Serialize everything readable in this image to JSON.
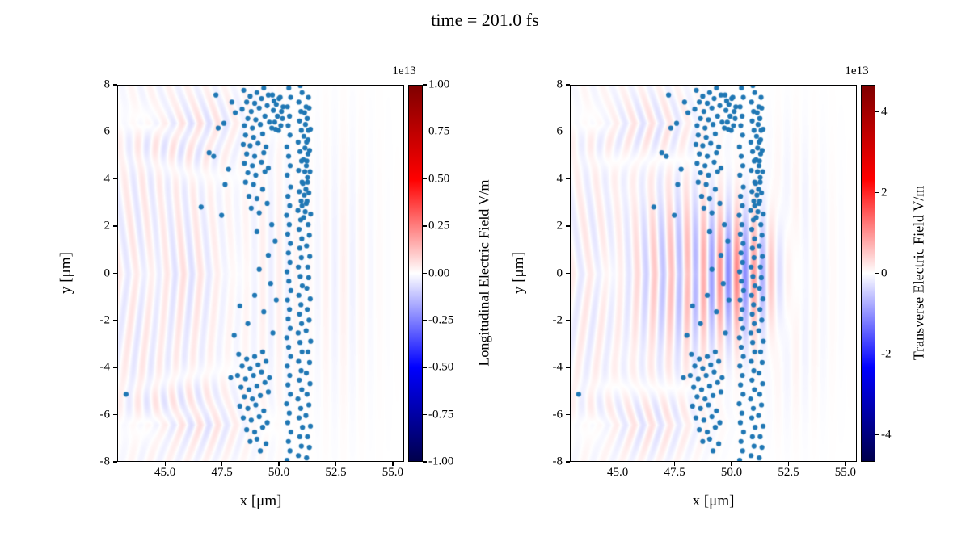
{
  "title": "time = 201.0 fs",
  "chart_data": [
    {
      "type": "scatter+heatmap",
      "xlabel": "x [μm]",
      "ylabel": "y [μm]",
      "xlim": [
        42.9,
        55.5
      ],
      "ylim": [
        -8,
        8
      ],
      "xticks": [
        45.0,
        47.5,
        50.0,
        52.5,
        55.0
      ],
      "xtick_labels": [
        "45.0",
        "47.5",
        "50.0",
        "52.5",
        "55.0"
      ],
      "yticks": [
        8,
        6,
        4,
        2,
        0,
        -2,
        -4,
        -6,
        -8
      ],
      "ytick_labels": [
        "8",
        "6",
        "4",
        "2",
        "0",
        "-2",
        "-4",
        "-6",
        "-8"
      ],
      "marker_color": "#1f77b4",
      "colorbar": {
        "label": "Longitudinal Electric Field V/m",
        "scale": "1e13",
        "vmin": -1.0,
        "vmax": 1.0,
        "tick_values": [
          1.0,
          0.75,
          0.5,
          0.25,
          0.0,
          -0.25,
          -0.5,
          -0.75,
          -1.0
        ],
        "tick_labels": [
          "1.00",
          "0.75",
          "0.50",
          "0.25",
          "0.00",
          "-0.25",
          "-0.50",
          "-0.75",
          "-1.00"
        ],
        "colormap": "seismic"
      },
      "field": {
        "packets": [
          {
            "cx": 45.6,
            "cy": 0,
            "sx": 2.0,
            "sy": 5.0,
            "wl": 0.75,
            "amp": 0.14,
            "tilt": 0.1
          },
          {
            "cx": 43.6,
            "cy": 0,
            "sx": 1.4,
            "sy": 7.0,
            "wl": 0.8,
            "amp": 0.1,
            "tilt": 0.15
          },
          {
            "cx": 46.3,
            "cy": 6.4,
            "sx": 2.4,
            "sy": 1.8,
            "wl": 0.8,
            "amp": 0.13,
            "tilt": 0.35
          },
          {
            "cx": 46.3,
            "cy": -6.4,
            "sx": 2.4,
            "sy": 1.8,
            "wl": 0.8,
            "amp": 0.13,
            "tilt": 0.35
          },
          {
            "cx": 49.8,
            "cy": 0,
            "sx": 1.6,
            "sy": 6.0,
            "wl": 0.75,
            "amp": 0.07,
            "tilt": 0.0
          },
          {
            "cx": 52.6,
            "cy": 0,
            "sx": 1.6,
            "sy": 6.0,
            "wl": 0.8,
            "amp": 0.06,
            "tilt": 0.0
          }
        ]
      }
    },
    {
      "type": "scatter+heatmap",
      "xlabel": "x [μm]",
      "ylabel": "y [μm]",
      "xlim": [
        42.9,
        55.5
      ],
      "ylim": [
        -8,
        8
      ],
      "xticks": [
        45.0,
        47.5,
        50.0,
        52.5,
        55.0
      ],
      "xtick_labels": [
        "45.0",
        "47.5",
        "50.0",
        "52.5",
        "55.0"
      ],
      "yticks": [
        8,
        6,
        4,
        2,
        0,
        -2,
        -4,
        -6,
        -8
      ],
      "ytick_labels": [
        "8",
        "6",
        "4",
        "2",
        "0",
        "-2",
        "-4",
        "-6",
        "-8"
      ],
      "marker_color": "#1f77b4",
      "colorbar": {
        "label": "Transverse Electric Field V/m",
        "scale": "1e13",
        "vmin": -4.67,
        "vmax": 4.67,
        "tick_values": [
          4,
          2,
          0,
          -2,
          -4
        ],
        "tick_labels": [
          "4",
          "2",
          "0",
          "-2",
          "-4"
        ],
        "colormap": "seismic"
      },
      "field": {
        "packets": [
          {
            "cx": 50.0,
            "cy": 0,
            "sx": 2.2,
            "sy": 2.6,
            "wl": 0.75,
            "amp": 0.5,
            "tilt": 0.0
          },
          {
            "cx": 47.2,
            "cy": 0,
            "sx": 2.2,
            "sy": 3.8,
            "wl": 0.78,
            "amp": 0.22,
            "tilt": 0.05
          },
          {
            "cx": 43.6,
            "cy": 0,
            "sx": 1.4,
            "sy": 7.0,
            "wl": 0.8,
            "amp": 0.1,
            "tilt": 0.15
          },
          {
            "cx": 46.3,
            "cy": 6.4,
            "sx": 2.4,
            "sy": 1.8,
            "wl": 0.8,
            "amp": 0.12,
            "tilt": 0.35
          },
          {
            "cx": 46.3,
            "cy": -6.4,
            "sx": 2.4,
            "sy": 1.8,
            "wl": 0.8,
            "amp": 0.12,
            "tilt": 0.35
          },
          {
            "cx": 52.6,
            "cy": 0,
            "sx": 1.6,
            "sy": 5.0,
            "wl": 0.8,
            "amp": 0.1,
            "tilt": 0.0
          }
        ]
      }
    }
  ],
  "scatter_points": [
    [
      50.32,
      -7.9
    ],
    [
      50.45,
      -7.5
    ],
    [
      50.38,
      -7.1
    ],
    [
      50.49,
      -6.7
    ],
    [
      50.35,
      -6.3
    ],
    [
      50.42,
      -5.9
    ],
    [
      50.3,
      -5.5
    ],
    [
      50.47,
      -5.1
    ],
    [
      50.36,
      -4.7
    ],
    [
      50.44,
      -4.3
    ],
    [
      50.33,
      -3.9
    ],
    [
      50.48,
      -3.5
    ],
    [
      50.39,
      -3.1
    ],
    [
      50.31,
      -2.7
    ],
    [
      50.46,
      -2.3
    ],
    [
      50.37,
      -1.9
    ],
    [
      50.43,
      -1.5
    ],
    [
      50.34,
      -1.1
    ],
    [
      50.49,
      -0.7
    ],
    [
      50.4,
      -0.3
    ],
    [
      50.32,
      0.1
    ],
    [
      50.45,
      0.5
    ],
    [
      50.38,
      0.9
    ],
    [
      50.47,
      1.3
    ],
    [
      50.35,
      1.7
    ],
    [
      50.42,
      2.1
    ],
    [
      50.3,
      2.5
    ],
    [
      50.44,
      2.9
    ],
    [
      50.36,
      3.3
    ],
    [
      50.48,
      3.7
    ],
    [
      50.33,
      4.2
    ],
    [
      50.46,
      4.6
    ],
    [
      50.39,
      5.0
    ],
    [
      50.31,
      5.4
    ],
    [
      50.45,
      5.9
    ],
    [
      50.37,
      6.3
    ],
    [
      50.43,
      6.7
    ],
    [
      50.34,
      7.1
    ],
    [
      50.48,
      7.5
    ],
    [
      50.4,
      7.9
    ],
    [
      50.82,
      -7.7
    ],
    [
      50.95,
      -7.3
    ],
    [
      50.88,
      -6.9
    ],
    [
      51.0,
      -6.5
    ],
    [
      50.85,
      -6.1
    ],
    [
      50.92,
      -5.7
    ],
    [
      50.8,
      -5.3
    ],
    [
      50.97,
      -4.9
    ],
    [
      50.86,
      -4.5
    ],
    [
      50.94,
      -4.1
    ],
    [
      50.83,
      -3.7
    ],
    [
      50.98,
      -3.3
    ],
    [
      50.89,
      -2.9
    ],
    [
      50.81,
      -2.5
    ],
    [
      50.96,
      -2.1
    ],
    [
      50.87,
      -1.7
    ],
    [
      50.93,
      -1.3
    ],
    [
      50.84,
      -0.9
    ],
    [
      50.99,
      -0.5
    ],
    [
      50.9,
      -0.1
    ],
    [
      50.82,
      0.3
    ],
    [
      50.95,
      0.7
    ],
    [
      50.88,
      1.1
    ],
    [
      50.97,
      1.5
    ],
    [
      50.85,
      1.9
    ],
    [
      50.92,
      2.3
    ],
    [
      50.8,
      2.7
    ],
    [
      50.94,
      3.1
    ],
    [
      50.86,
      3.5
    ],
    [
      50.98,
      3.9
    ],
    [
      50.83,
      4.4
    ],
    [
      50.96,
      4.8
    ],
    [
      50.89,
      5.2
    ],
    [
      50.81,
      5.6
    ],
    [
      50.95,
      6.1
    ],
    [
      50.87,
      6.5
    ],
    [
      50.93,
      6.9
    ],
    [
      50.84,
      7.3
    ],
    [
      50.98,
      7.7
    ],
    [
      50.9,
      8.0
    ],
    [
      51.18,
      -7.8
    ],
    [
      51.3,
      -7.35
    ],
    [
      51.22,
      -6.9
    ],
    [
      51.35,
      -6.45
    ],
    [
      51.15,
      -6.0
    ],
    [
      51.28,
      -5.55
    ],
    [
      51.2,
      -5.1
    ],
    [
      51.33,
      -4.65
    ],
    [
      51.17,
      -4.2
    ],
    [
      51.31,
      -3.75
    ],
    [
      51.24,
      -3.3
    ],
    [
      51.36,
      -2.85
    ],
    [
      51.16,
      -2.4
    ],
    [
      51.29,
      -1.95
    ],
    [
      51.21,
      -1.5
    ],
    [
      51.34,
      -1.05
    ],
    [
      51.19,
      -0.6
    ],
    [
      51.27,
      -0.15
    ],
    [
      51.23,
      0.3
    ],
    [
      51.32,
      0.75
    ],
    [
      51.18,
      1.2
    ],
    [
      51.3,
      1.65
    ],
    [
      51.25,
      2.1
    ],
    [
      51.36,
      2.55
    ],
    [
      51.17,
      3.0
    ],
    [
      51.28,
      3.45
    ],
    [
      51.22,
      3.9
    ],
    [
      51.33,
      4.35
    ],
    [
      51.19,
      4.8
    ],
    [
      51.31,
      5.25
    ],
    [
      51.24,
      5.7
    ],
    [
      51.35,
      6.15
    ],
    [
      51.2,
      6.6
    ],
    [
      51.29,
      7.05
    ],
    [
      51.26,
      7.5
    ],
    [
      51.05,
      2.4
    ],
    [
      51.12,
      2.65
    ],
    [
      50.98,
      2.9
    ],
    [
      51.2,
      3.1
    ],
    [
      51.08,
      3.35
    ],
    [
      51.15,
      3.6
    ],
    [
      51.02,
      3.85
    ],
    [
      51.22,
      4.1
    ],
    [
      51.1,
      4.35
    ],
    [
      51.17,
      4.6
    ],
    [
      51.04,
      4.85
    ],
    [
      51.24,
      5.1
    ],
    [
      51.11,
      5.35
    ],
    [
      51.18,
      5.6
    ],
    [
      51.06,
      5.85
    ],
    [
      51.26,
      6.1
    ],
    [
      51.13,
      6.35
    ],
    [
      51.21,
      6.6
    ],
    [
      51.09,
      6.85
    ],
    [
      51.16,
      7.1
    ],
    [
      49.65,
      6.2
    ],
    [
      49.78,
      6.45
    ],
    [
      49.9,
      6.7
    ],
    [
      49.72,
      6.95
    ],
    [
      49.85,
      7.2
    ],
    [
      49.97,
      7.45
    ],
    [
      49.68,
      7.6
    ],
    [
      50.05,
      6.3
    ],
    [
      50.12,
      6.6
    ],
    [
      49.95,
      6.1
    ],
    [
      50.08,
      6.9
    ],
    [
      49.82,
      6.15
    ],
    [
      50.15,
      7.1
    ],
    [
      49.75,
      7.35
    ],
    [
      50.02,
      7.5
    ],
    [
      48.42,
      7.8
    ],
    [
      48.7,
      7.55
    ],
    [
      49.0,
      7.7
    ],
    [
      49.3,
      7.9
    ],
    [
      48.55,
      7.3
    ],
    [
      48.9,
      7.25
    ],
    [
      49.2,
      7.45
    ],
    [
      49.5,
      7.6
    ],
    [
      48.35,
      7.0
    ],
    [
      48.75,
      6.9
    ],
    [
      49.1,
      7.05
    ],
    [
      49.45,
      7.15
    ],
    [
      48.6,
      6.6
    ],
    [
      48.95,
      6.55
    ],
    [
      49.35,
      6.7
    ],
    [
      48.45,
      6.3
    ],
    [
      48.8,
      6.2
    ],
    [
      49.15,
      6.35
    ],
    [
      49.55,
      6.45
    ],
    [
      48.5,
      5.9
    ],
    [
      48.85,
      5.8
    ],
    [
      49.25,
      5.95
    ],
    [
      48.4,
      5.5
    ],
    [
      48.7,
      5.45
    ],
    [
      49.05,
      5.55
    ],
    [
      49.4,
      5.4
    ],
    [
      48.55,
      5.1
    ],
    [
      48.9,
      5.0
    ],
    [
      49.3,
      5.15
    ],
    [
      48.45,
      4.7
    ],
    [
      48.8,
      4.6
    ],
    [
      49.2,
      4.75
    ],
    [
      49.5,
      4.5
    ],
    [
      48.6,
      4.3
    ],
    [
      48.95,
      4.2
    ],
    [
      49.35,
      4.35
    ],
    [
      48.5,
      3.9
    ],
    [
      48.85,
      3.8
    ],
    [
      49.25,
      3.6
    ],
    [
      48.65,
      3.3
    ],
    [
      49.0,
      3.2
    ],
    [
      49.45,
      3.0
    ],
    [
      48.75,
      2.8
    ],
    [
      49.1,
      2.6
    ],
    [
      48.2,
      -3.4
    ],
    [
      48.55,
      -3.6
    ],
    [
      48.9,
      -3.5
    ],
    [
      49.25,
      -3.3
    ],
    [
      48.35,
      -3.9
    ],
    [
      48.7,
      -4.0
    ],
    [
      49.05,
      -3.85
    ],
    [
      49.4,
      -3.7
    ],
    [
      48.15,
      -4.3
    ],
    [
      48.5,
      -4.45
    ],
    [
      48.85,
      -4.3
    ],
    [
      49.2,
      -4.15
    ],
    [
      49.55,
      -4.4
    ],
    [
      48.3,
      -4.8
    ],
    [
      48.65,
      -4.9
    ],
    [
      49.0,
      -4.75
    ],
    [
      49.35,
      -4.6
    ],
    [
      48.45,
      -5.2
    ],
    [
      48.8,
      -5.3
    ],
    [
      49.15,
      -5.15
    ],
    [
      49.5,
      -5.0
    ],
    [
      48.25,
      -5.6
    ],
    [
      48.6,
      -5.7
    ],
    [
      48.95,
      -5.55
    ],
    [
      49.3,
      -5.8
    ],
    [
      48.4,
      -6.1
    ],
    [
      48.75,
      -6.2
    ],
    [
      49.1,
      -6.05
    ],
    [
      49.45,
      -6.3
    ],
    [
      48.55,
      -6.6
    ],
    [
      48.9,
      -6.7
    ],
    [
      49.25,
      -6.5
    ],
    [
      49.0,
      -7.0
    ],
    [
      49.4,
      -7.2
    ],
    [
      48.7,
      -7.1
    ],
    [
      49.15,
      -7.5
    ],
    [
      48.25,
      -1.35
    ],
    [
      48.9,
      -0.9
    ],
    [
      49.3,
      -1.6
    ],
    [
      49.6,
      -0.4
    ],
    [
      49.1,
      0.2
    ],
    [
      49.5,
      0.8
    ],
    [
      49.8,
      1.4
    ],
    [
      49.0,
      1.8
    ],
    [
      49.65,
      2.1
    ],
    [
      48.6,
      -2.1
    ],
    [
      49.85,
      -1.1
    ],
    [
      49.7,
      -2.5
    ],
    [
      43.25,
      -5.1
    ],
    [
      46.55,
      2.85
    ],
    [
      47.3,
      6.2
    ],
    [
      47.55,
      6.4
    ],
    [
      46.9,
      5.15
    ],
    [
      47.1,
      5.0
    ],
    [
      47.75,
      4.45
    ],
    [
      47.45,
      2.5
    ],
    [
      47.9,
      7.3
    ],
    [
      47.2,
      7.6
    ],
    [
      48.05,
      6.85
    ],
    [
      47.85,
      -4.4
    ],
    [
      48.0,
      -2.6
    ],
    [
      47.6,
      3.8
    ]
  ]
}
